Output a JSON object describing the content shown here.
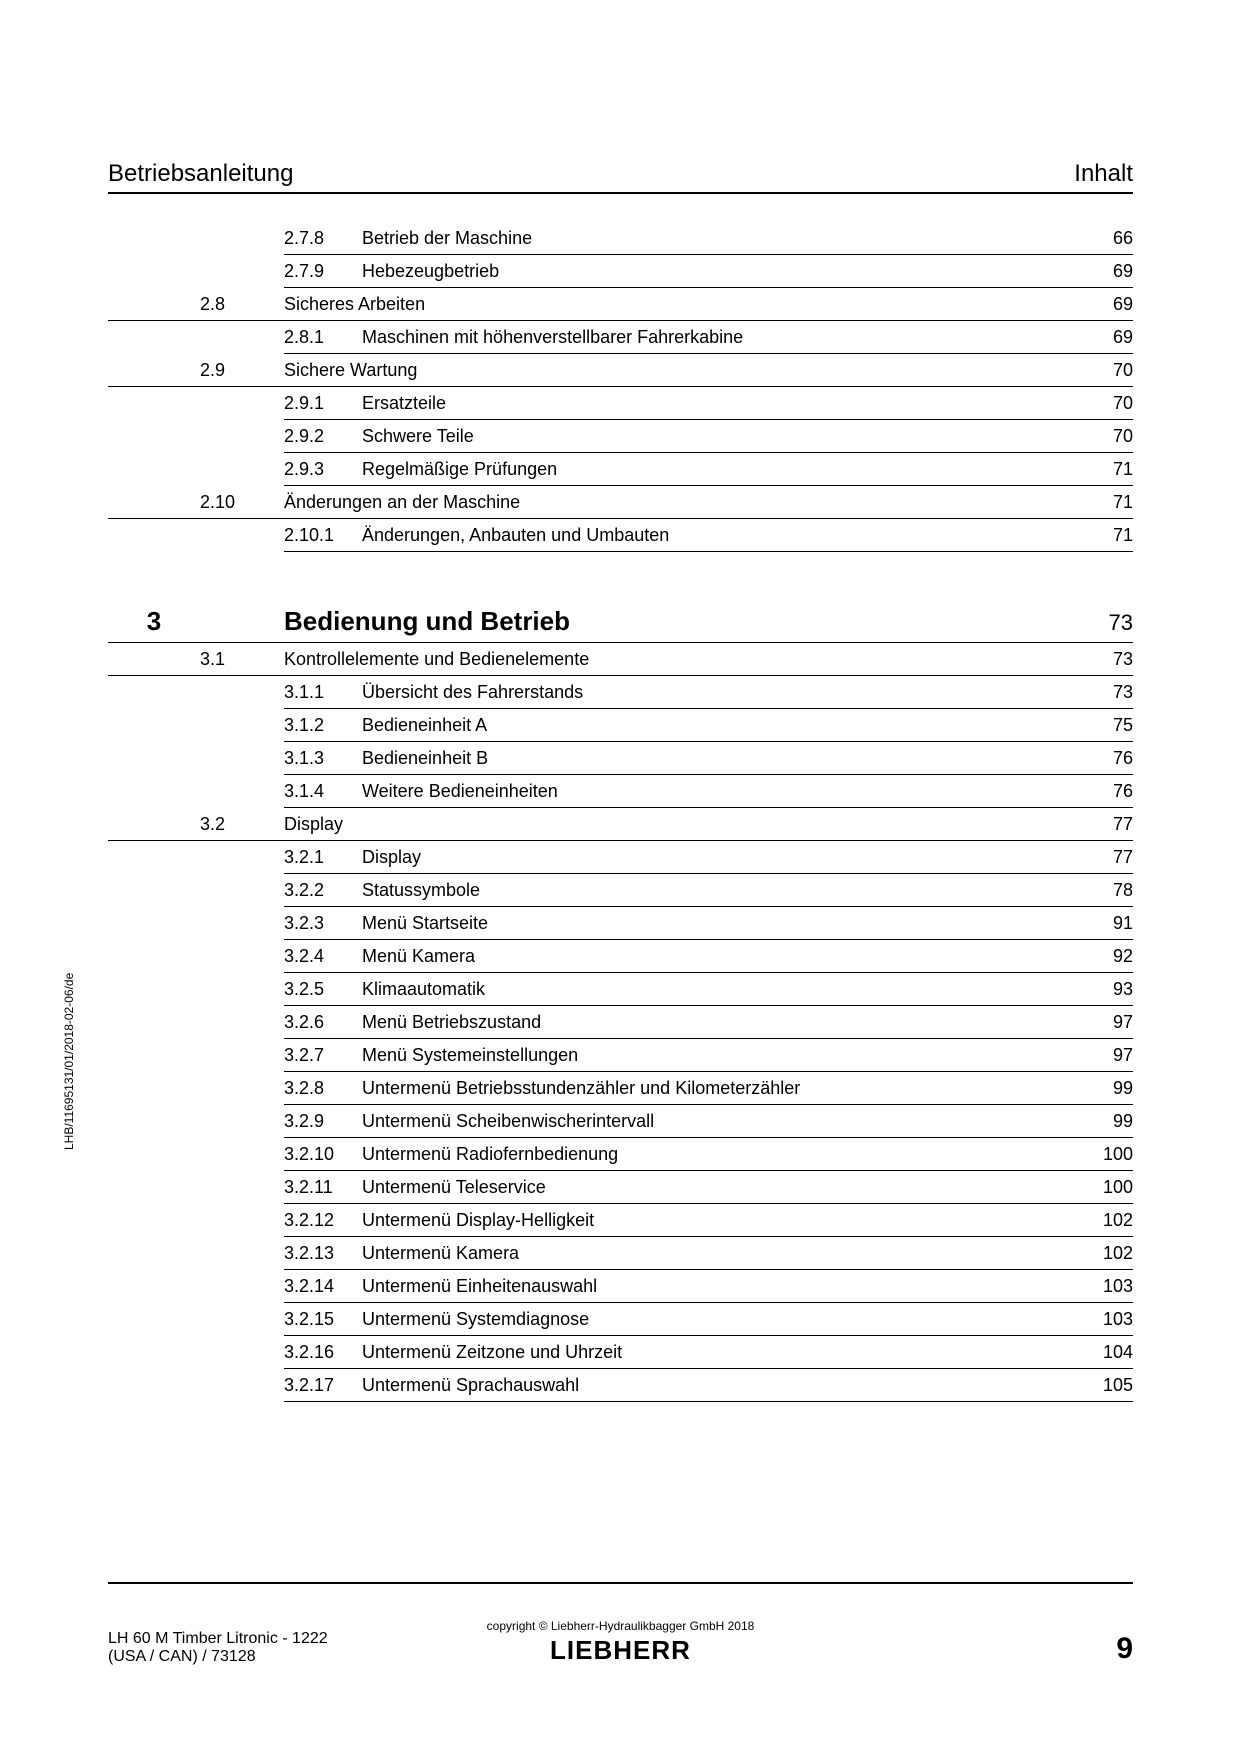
{
  "header": {
    "left": "Betriebsanleitung",
    "right": "Inhalt"
  },
  "marginText": "LHB/11695131/01/2018-02-06/de",
  "entries": [
    {
      "type": "sub",
      "num": "2.7.8",
      "title": "Betrieb der Maschine",
      "page": "66"
    },
    {
      "type": "sub",
      "num": "2.7.9",
      "title": "Hebezeugbetrieb",
      "page": "69"
    },
    {
      "type": "sec",
      "num": "2.8",
      "title": "Sicheres Arbeiten",
      "page": "69"
    },
    {
      "type": "sub",
      "num": "2.8.1",
      "title": "Maschinen mit höhenverstellbarer Fahrerkabine",
      "page": "69"
    },
    {
      "type": "sec",
      "num": "2.9",
      "title": "Sichere Wartung",
      "page": "70"
    },
    {
      "type": "sub",
      "num": "2.9.1",
      "title": "Ersatzteile",
      "page": "70"
    },
    {
      "type": "sub",
      "num": "2.9.2",
      "title": "Schwere Teile",
      "page": "70"
    },
    {
      "type": "sub",
      "num": "2.9.3",
      "title": "Regelmäßige Prüfungen",
      "page": "71"
    },
    {
      "type": "sec",
      "num": "2.10",
      "title": "Änderungen an der Maschine",
      "page": "71"
    },
    {
      "type": "sub",
      "num": "2.10.1",
      "title": "Änderungen, Anbauten und Umbauten",
      "page": "71"
    },
    {
      "type": "gap"
    },
    {
      "type": "chapter",
      "num": "3",
      "title": "Bedienung und Betrieb",
      "page": "73"
    },
    {
      "type": "sec",
      "num": "3.1",
      "title": "Kontrollelemente und Bedienelemente",
      "page": "73"
    },
    {
      "type": "sub",
      "num": "3.1.1",
      "title": "Übersicht des Fahrerstands",
      "page": "73"
    },
    {
      "type": "sub",
      "num": "3.1.2",
      "title": "Bedieneinheit A",
      "page": "75"
    },
    {
      "type": "sub",
      "num": "3.1.3",
      "title": "Bedieneinheit B",
      "page": "76"
    },
    {
      "type": "sub",
      "num": "3.1.4",
      "title": "Weitere Bedieneinheiten",
      "page": "76"
    },
    {
      "type": "sec",
      "num": "3.2",
      "title": "Display",
      "page": "77"
    },
    {
      "type": "sub",
      "num": "3.2.1",
      "title": "Display",
      "page": "77"
    },
    {
      "type": "sub",
      "num": "3.2.2",
      "title": "Statussymbole",
      "page": "78"
    },
    {
      "type": "sub",
      "num": "3.2.3",
      "title": "Menü Startseite",
      "page": "91"
    },
    {
      "type": "sub",
      "num": "3.2.4",
      "title": "Menü Kamera",
      "page": "92"
    },
    {
      "type": "sub",
      "num": "3.2.5",
      "title": "Klimaautomatik",
      "page": "93"
    },
    {
      "type": "sub",
      "num": "3.2.6",
      "title": "Menü Betriebszustand",
      "page": "97"
    },
    {
      "type": "sub",
      "num": "3.2.7",
      "title": "Menü Systemeinstellungen",
      "page": "97"
    },
    {
      "type": "sub",
      "num": "3.2.8",
      "title": "Untermenü Betriebsstundenzähler und Kilometerzähler",
      "page": "99"
    },
    {
      "type": "sub",
      "num": "3.2.9",
      "title": "Untermenü Scheibenwischerintervall",
      "page": "99"
    },
    {
      "type": "sub",
      "num": "3.2.10",
      "title": "Untermenü Radiofernbedienung",
      "page": "100"
    },
    {
      "type": "sub",
      "num": "3.2.11",
      "title": "Untermenü Teleservice",
      "page": "100"
    },
    {
      "type": "sub",
      "num": "3.2.12",
      "title": "Untermenü Display-Helligkeit",
      "page": "102"
    },
    {
      "type": "sub",
      "num": "3.2.13",
      "title": "Untermenü Kamera",
      "page": "102"
    },
    {
      "type": "sub",
      "num": "3.2.14",
      "title": "Untermenü Einheitenauswahl",
      "page": "103"
    },
    {
      "type": "sub",
      "num": "3.2.15",
      "title": "Untermenü Systemdiagnose",
      "page": "103"
    },
    {
      "type": "sub",
      "num": "3.2.16",
      "title": "Untermenü Zeitzone und Uhrzeit",
      "page": "104"
    },
    {
      "type": "sub",
      "num": "3.2.17",
      "title": "Untermenü Sprachauswahl",
      "page": "105"
    }
  ],
  "footer": {
    "left1": "LH 60 M Timber Litronic  - 1222",
    "left2": " (USA / CAN) / 73128",
    "copyright": "copyright © Liebherr-Hydraulikbagger GmbH 2018",
    "logo": "LIEBHERR",
    "page": "9"
  }
}
